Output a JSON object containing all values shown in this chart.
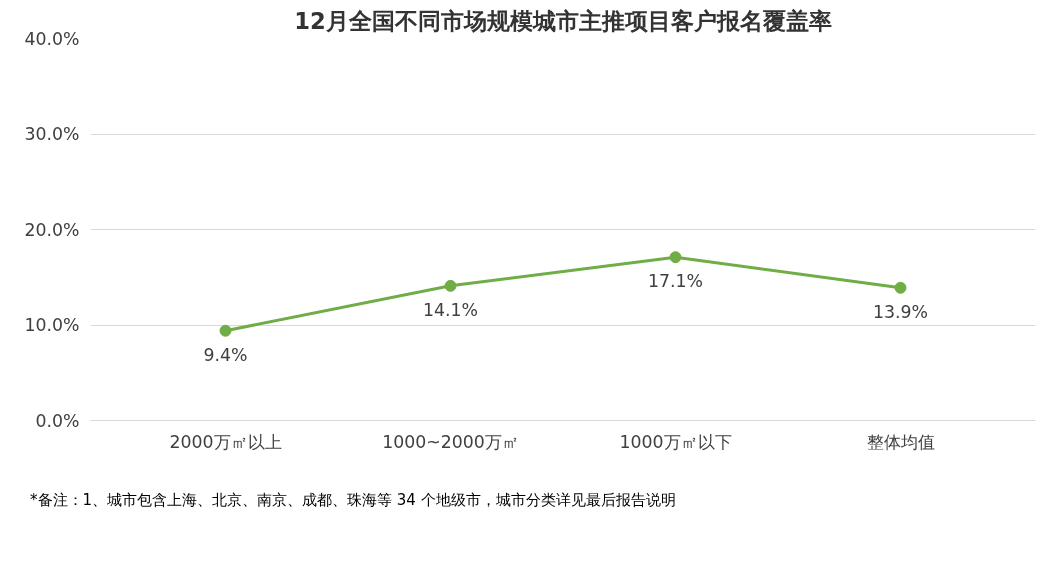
{
  "chart_data": {
    "type": "line",
    "title": "12月全国不同市场规模城市主推项目客户报名覆盖率",
    "categories": [
      "2000万㎡以上",
      "1000~2000万㎡",
      "1000万㎡以下",
      "整体均值"
    ],
    "series": [
      {
        "color": "#70ad47",
        "values": [
          9.4,
          14.1,
          17.1,
          13.9
        ],
        "value_labels": [
          "9.4%",
          "14.1%",
          "17.1%",
          "13.9%"
        ]
      }
    ],
    "ylim": [
      0,
      40
    ],
    "yticks": [
      {
        "value": 0,
        "label": "0.0%"
      },
      {
        "value": 10,
        "label": "10.0%"
      },
      {
        "value": 20,
        "label": "20.0%"
      },
      {
        "value": 30,
        "label": "30.0%"
      },
      {
        "value": 40,
        "label": "40.0%"
      }
    ],
    "grid": "y",
    "marker": "circle",
    "line_style": "solid",
    "annotations": [
      "*备注：1、城市包含上海、北京、南京、成都、珠海等 34 个地级市，城市分类详见最后报告说明"
    ]
  }
}
